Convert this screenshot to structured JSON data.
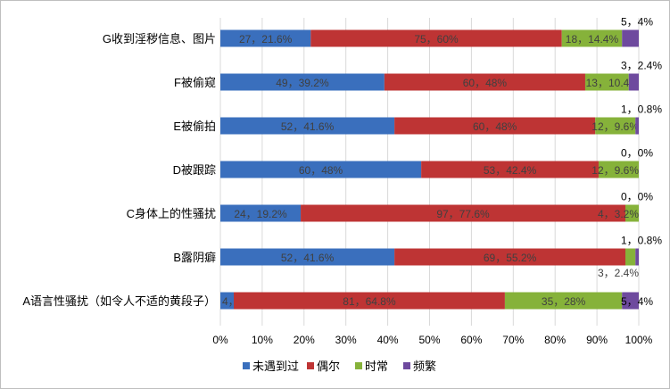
{
  "chart_data": {
    "type": "bar",
    "orientation": "horizontal",
    "stacked": "percent",
    "categories": [
      "G收到淫秽信息、图片",
      "F被偷窥",
      "E被偷拍",
      "D被跟踪",
      "C身体上的性骚扰",
      "B露阴癖",
      "A语言性骚扰（如令人不适的黄段子）"
    ],
    "series": [
      {
        "name": "未遇到过",
        "color": "#3a6fbd",
        "counts": [
          27,
          49,
          52,
          60,
          24,
          52,
          4
        ],
        "percents": [
          21.6,
          39.2,
          41.6,
          48,
          19.2,
          41.6,
          3.2
        ],
        "labels": [
          "27，21.6%",
          "49，39.2%",
          "52，41.6%",
          "60，48%",
          "24，19.2%",
          "52，41.6%",
          "4，3.2%"
        ]
      },
      {
        "name": "偶尔",
        "color": "#be3434",
        "counts": [
          75,
          60,
          60,
          53,
          97,
          69,
          81
        ],
        "percents": [
          60,
          48,
          48,
          42.4,
          77.6,
          55.2,
          64.8
        ],
        "labels": [
          "75，60%",
          "60，48%",
          "60，48%",
          "53，42.4%",
          "97，77.6%",
          "69，55.2%",
          "81，64.8%"
        ]
      },
      {
        "name": "时常",
        "color": "#86b23a",
        "counts": [
          18,
          13,
          12,
          12,
          4,
          3,
          35
        ],
        "percents": [
          14.4,
          10.4,
          9.6,
          9.6,
          3.2,
          2.4,
          28
        ],
        "labels": [
          "18，14.4%",
          "13，10.4%",
          "12，9.6%",
          "12，9.6%",
          "4，3.2%",
          "3，2.4%",
          "35，28%"
        ]
      },
      {
        "name": "频繁",
        "color": "#6e4a9e",
        "counts": [
          5,
          3,
          1,
          0,
          0,
          1,
          5
        ],
        "percents": [
          4,
          2.4,
          0.8,
          0,
          0,
          0.8,
          4
        ],
        "labels": [
          "5，4%",
          "3，2.4%",
          "1，0.8%",
          "0，0%",
          "0，0%",
          "1，0.8%",
          "5，4%"
        ]
      }
    ],
    "xlim": [
      0,
      100
    ],
    "xticks": [
      "0%",
      "10%",
      "20%",
      "30%",
      "40%",
      "50%",
      "60%",
      "70%",
      "80%",
      "90%",
      "100%"
    ],
    "grid": true,
    "legend": "bottom"
  }
}
